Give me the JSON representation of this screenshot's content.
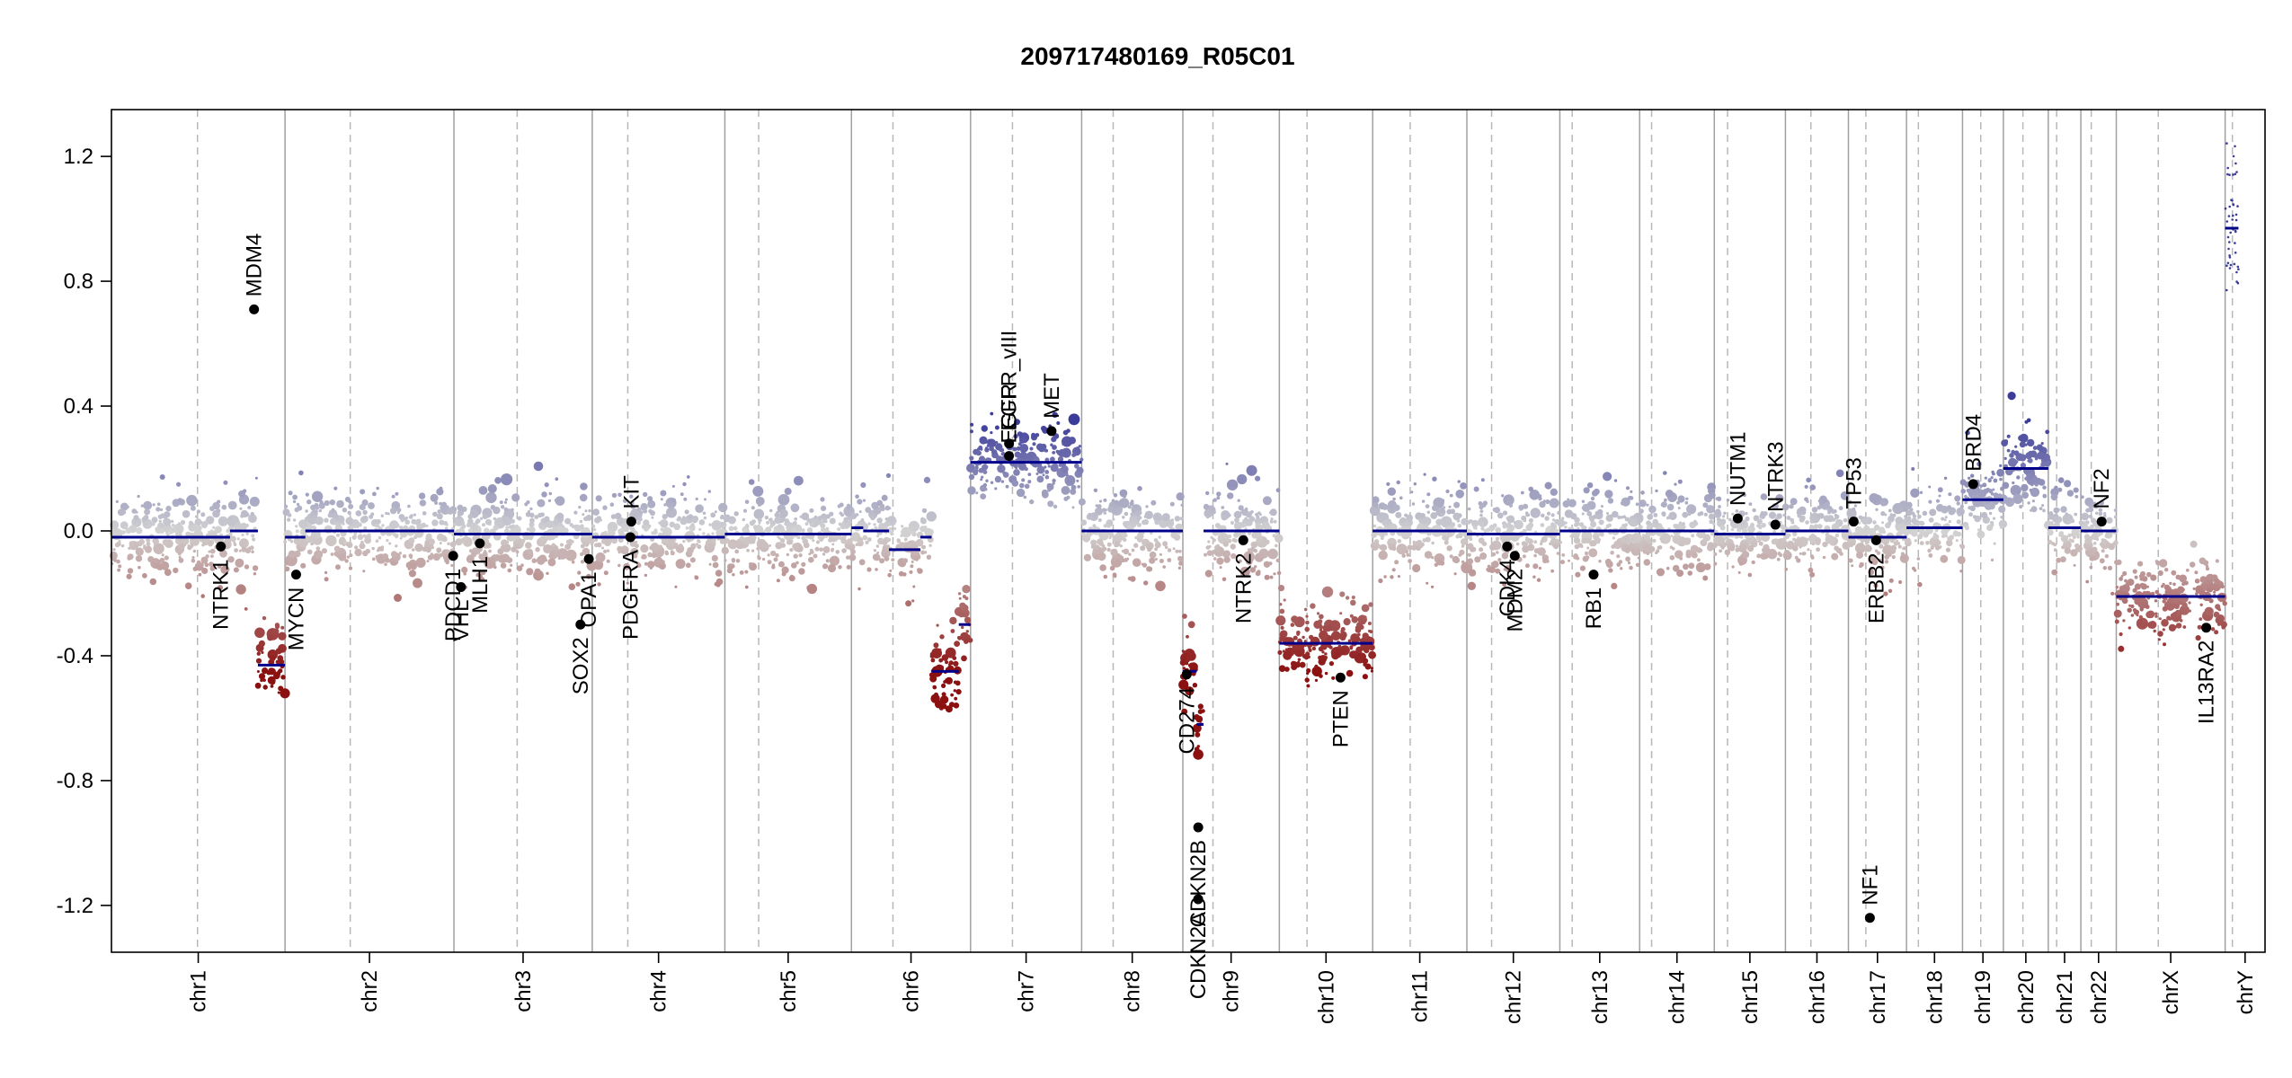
{
  "chart_data": {
    "type": "scatter",
    "title": "209717480169_R05C01",
    "xlabel": "",
    "ylabel": "",
    "ylim": [
      -1.35,
      1.35
    ],
    "yticks": [
      -1.2,
      -0.8,
      -0.4,
      0.0,
      0.4,
      0.8,
      1.2
    ],
    "ytick_labels": [
      "-1.2",
      "-0.8",
      "-0.4",
      "0.0",
      "0.4",
      "0.8",
      "1.2"
    ],
    "color_scale": {
      "high": "#3b3b9a",
      "mid": "#d3d3d3",
      "low": "#8b1010",
      "segment": "#00008b"
    },
    "chromosomes": [
      {
        "name": "chr1",
        "start": 0,
        "end": 248.9,
        "centromere": 123.4
      },
      {
        "name": "chr2",
        "start": 248.9,
        "end": 491.1,
        "centromere": 342.4
      },
      {
        "name": "chr3",
        "start": 491.1,
        "end": 689.4,
        "centromere": 581.8
      },
      {
        "name": "chr4",
        "start": 689.4,
        "end": 879.6,
        "centromere": 740.4
      },
      {
        "name": "chr5",
        "start": 879.6,
        "end": 1061.1,
        "centromere": 928.1
      },
      {
        "name": "chr6",
        "start": 1061.1,
        "end": 1231.9,
        "centromere": 1120.6
      },
      {
        "name": "chr7",
        "start": 1231.9,
        "end": 1391.2,
        "centromere": 1292.0
      },
      {
        "name": "chr8",
        "start": 1391.2,
        "end": 1536.3,
        "centromere": 1436.4
      },
      {
        "name": "chr9",
        "start": 1536.3,
        "end": 1674.7,
        "centromere": 1579.5
      },
      {
        "name": "chr10",
        "start": 1674.7,
        "end": 1808.5,
        "centromere": 1714.4
      },
      {
        "name": "chr11",
        "start": 1808.5,
        "end": 1943.6,
        "centromere": 1862.3
      },
      {
        "name": "chr12",
        "start": 1943.6,
        "end": 2076.9,
        "centromere": 1979.1
      },
      {
        "name": "chr13",
        "start": 2076.9,
        "end": 2191.3,
        "centromere": 2094.6
      },
      {
        "name": "chr14",
        "start": 2191.3,
        "end": 2298.4,
        "centromere": 2208.5
      },
      {
        "name": "chr15",
        "start": 2298.4,
        "end": 2400.4,
        "centromere": 2317.4
      },
      {
        "name": "chr16",
        "start": 2400.4,
        "end": 2490.7,
        "centromere": 2436.9
      },
      {
        "name": "chr17",
        "start": 2490.7,
        "end": 2574.0,
        "centromere": 2515.7
      },
      {
        "name": "chr18",
        "start": 2574.0,
        "end": 2654.3,
        "centromere": 2591.0
      },
      {
        "name": "chr19",
        "start": 2654.3,
        "end": 2712.9,
        "centromere": 2680.5
      },
      {
        "name": "chr20",
        "start": 2712.9,
        "end": 2777.3,
        "centromere": 2740.9
      },
      {
        "name": "chr21",
        "start": 2777.3,
        "end": 2824.0,
        "centromere": 2789.3
      },
      {
        "name": "chr22",
        "start": 2824.0,
        "end": 2874.8,
        "centromere": 2838.9
      },
      {
        "name": "chrX",
        "start": 2874.8,
        "end": 3030.9,
        "centromere": 2935.0
      },
      {
        "name": "chrY",
        "start": 3030.9,
        "end": 3088.1,
        "centromere": 3041.3
      }
    ],
    "segments": [
      {
        "start": 0,
        "end": 170,
        "value": -0.02
      },
      {
        "start": 170,
        "end": 210,
        "value": 0.0
      },
      {
        "start": 210,
        "end": 248.9,
        "value": -0.43
      },
      {
        "start": 248.9,
        "end": 278,
        "value": -0.02
      },
      {
        "start": 278,
        "end": 491.1,
        "value": 0.0
      },
      {
        "start": 491.1,
        "end": 560,
        "value": -0.01
      },
      {
        "start": 560,
        "end": 689.4,
        "value": -0.01
      },
      {
        "start": 689.4,
        "end": 879.6,
        "value": -0.02
      },
      {
        "start": 879.6,
        "end": 1061.1,
        "value": -0.01
      },
      {
        "start": 1061.1,
        "end": 1078,
        "value": 0.01
      },
      {
        "start": 1078,
        "end": 1115,
        "value": 0.0
      },
      {
        "start": 1115,
        "end": 1160,
        "value": -0.06
      },
      {
        "start": 1160,
        "end": 1176,
        "value": -0.02
      },
      {
        "start": 1176,
        "end": 1215,
        "value": -0.45
      },
      {
        "start": 1215,
        "end": 1231.9,
        "value": -0.3
      },
      {
        "start": 1231.9,
        "end": 1391.2,
        "value": 0.22
      },
      {
        "start": 1391.2,
        "end": 1536.3,
        "value": 0.0
      },
      {
        "start": 1536.3,
        "end": 1556,
        "value": -0.45
      },
      {
        "start": 1556,
        "end": 1566,
        "value": -0.62
      },
      {
        "start": 1566,
        "end": 1674.7,
        "value": 0.0
      },
      {
        "start": 1674.7,
        "end": 1808.5,
        "value": -0.36
      },
      {
        "start": 1808.5,
        "end": 1943.6,
        "value": 0.0
      },
      {
        "start": 1943.6,
        "end": 2076.9,
        "value": -0.01
      },
      {
        "start": 2076.9,
        "end": 2191.3,
        "value": 0.0
      },
      {
        "start": 2191.3,
        "end": 2298.4,
        "value": 0.0
      },
      {
        "start": 2298.4,
        "end": 2400.4,
        "value": -0.01
      },
      {
        "start": 2400.4,
        "end": 2490.7,
        "value": 0.0
      },
      {
        "start": 2490.7,
        "end": 2574.0,
        "value": -0.02
      },
      {
        "start": 2574.0,
        "end": 2654.3,
        "value": 0.01
      },
      {
        "start": 2654.3,
        "end": 2712.9,
        "value": 0.1
      },
      {
        "start": 2712.9,
        "end": 2777.3,
        "value": 0.2
      },
      {
        "start": 2777.3,
        "end": 2824.0,
        "value": 0.01
      },
      {
        "start": 2824.0,
        "end": 2874.8,
        "value": 0.0
      },
      {
        "start": 2874.8,
        "end": 3030.9,
        "value": -0.21
      },
      {
        "start": 3030.9,
        "end": 3050,
        "value": 0.97
      }
    ],
    "genes": [
      {
        "label": "NTRK1",
        "pos": 156.9,
        "value": -0.05,
        "side": "below"
      },
      {
        "label": "MDM4",
        "pos": 204.5,
        "value": 0.71,
        "side": "above"
      },
      {
        "label": "MYCN",
        "pos": 264.8,
        "value": -0.14,
        "side": "below"
      },
      {
        "label": "PDCD1",
        "pos": 490.0,
        "value": -0.08,
        "side": "below"
      },
      {
        "label": "VHL",
        "pos": 501.2,
        "value": -0.18,
        "side": "below"
      },
      {
        "label": "MLH1",
        "pos": 528.2,
        "value": -0.04,
        "side": "below"
      },
      {
        "label": "SOX2",
        "pos": 672.5,
        "value": -0.3,
        "side": "below"
      },
      {
        "label": "OPA1",
        "pos": 684.5,
        "value": -0.09,
        "side": "below"
      },
      {
        "label": "PDGFRA",
        "pos": 744.2,
        "value": -0.02,
        "side": "below"
      },
      {
        "label": "KIT",
        "pos": 745.5,
        "value": 0.03,
        "side": "above"
      },
      {
        "label": "EGFR",
        "pos": 1287.0,
        "value": 0.24,
        "side": "above"
      },
      {
        "label": "EGFR_vIII",
        "pos": 1287.1,
        "value": 0.28,
        "side": "above"
      },
      {
        "label": "MET",
        "pos": 1348.0,
        "value": 0.32,
        "side": "above"
      },
      {
        "label": "CDKN2A",
        "pos": 1558.3,
        "value": -1.18,
        "side": "below"
      },
      {
        "label": "CDKN2B",
        "pos": 1558.4,
        "value": -0.95,
        "side": "below"
      },
      {
        "label": "CD274",
        "pos": 1541.8,
        "value": -0.46,
        "side": "below"
      },
      {
        "label": "NTRK2",
        "pos": 1623.0,
        "value": -0.03,
        "side": "below"
      },
      {
        "label": "PTEN",
        "pos": 1762.4,
        "value": -0.47,
        "side": "below"
      },
      {
        "label": "CDK4",
        "pos": 2001.4,
        "value": -0.05,
        "side": "below"
      },
      {
        "label": "MDM2",
        "pos": 2012.3,
        "value": -0.08,
        "side": "below"
      },
      {
        "label": "RB1",
        "pos": 2125.3,
        "value": -0.14,
        "side": "below"
      },
      {
        "label": "NUTM1",
        "pos": 2332.0,
        "value": 0.04,
        "side": "above"
      },
      {
        "label": "NTRK3",
        "pos": 2386.0,
        "value": 0.02,
        "side": "above"
      },
      {
        "label": "TP53",
        "pos": 2498.2,
        "value": 0.03,
        "side": "above"
      },
      {
        "label": "NF1",
        "pos": 2521.5,
        "value": -1.24,
        "side": "above"
      },
      {
        "label": "ERBB2",
        "pos": 2530.4,
        "value": -0.03,
        "side": "below"
      },
      {
        "label": "BRD4",
        "pos": 2669.6,
        "value": 0.15,
        "side": "above"
      },
      {
        "label": "NF2",
        "pos": 2853.8,
        "value": 0.03,
        "side": "above"
      },
      {
        "label": "IL13RA2",
        "pos": 3003.8,
        "value": -0.31,
        "side": "below"
      }
    ]
  }
}
